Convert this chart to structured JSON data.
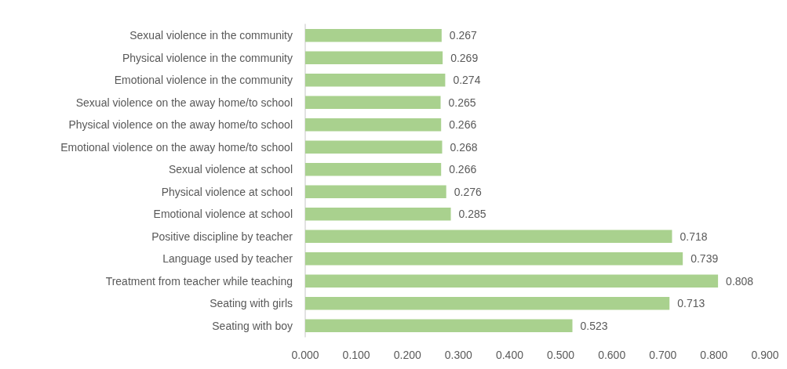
{
  "chart_data": {
    "type": "bar",
    "orientation": "horizontal",
    "categories": [
      "Sexual violence in the community",
      "Physical violence in the community",
      "Emotional violence in the community",
      "Sexual violence on the away home/to school",
      "Physical violence on the away home/to school",
      "Emotional violence on the away home/to school",
      "Sexual violence at school",
      "Physical violence at school",
      "Emotional violence at school",
      "Positive discipline by teacher",
      "Language used by teacher",
      "Treatment from teacher while teaching",
      "Seating with girls",
      "Seating with boy"
    ],
    "values": [
      0.267,
      0.269,
      0.274,
      0.265,
      0.266,
      0.268,
      0.266,
      0.276,
      0.285,
      0.718,
      0.739,
      0.808,
      0.713,
      0.523
    ],
    "color": "#a9d18e",
    "xlim": [
      0,
      0.9
    ],
    "xticks": [
      {
        "value": 0,
        "label": "0.000"
      },
      {
        "value": 0.1,
        "label": "0.100"
      },
      {
        "value": 0.2,
        "label": "0.200"
      },
      {
        "value": 0.3,
        "label": "0.300"
      },
      {
        "value": 0.4,
        "label": "0.400"
      },
      {
        "value": 0.5,
        "label": "0.500"
      },
      {
        "value": 0.6,
        "label": "0.600"
      },
      {
        "value": 0.7,
        "label": "0.700"
      },
      {
        "value": 0.8,
        "label": "0.800"
      },
      {
        "value": 0.9,
        "label": "0.900"
      }
    ],
    "data_labels": true
  }
}
